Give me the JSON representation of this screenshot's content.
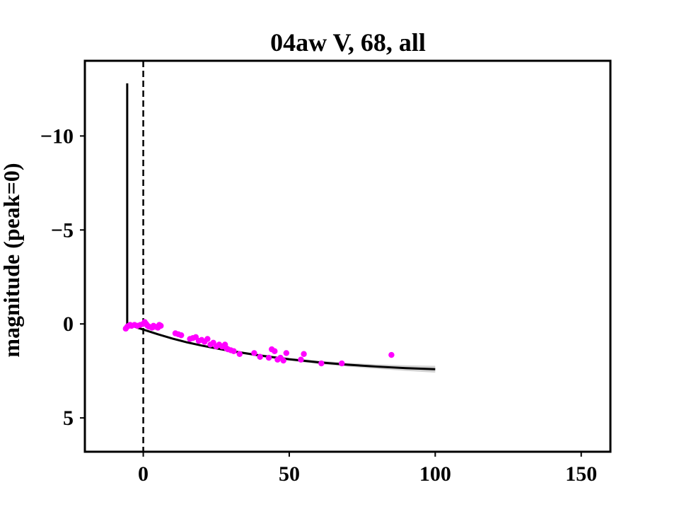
{
  "chart_data": {
    "type": "scatter",
    "title": "04aw V, 68, all",
    "xlabel": "",
    "ylabel": "magnitude (peak=0)",
    "xlim": [
      -20,
      160
    ],
    "ylim": [
      6.8,
      -14
    ],
    "y_inverted": true,
    "grid": false,
    "legend": "none",
    "xticks": [
      0,
      50,
      100,
      150
    ],
    "xtick_labels": [
      "0",
      "50",
      "100",
      "150"
    ],
    "yticks": [
      -10,
      -5,
      0,
      5
    ],
    "ytick_labels": [
      "−10",
      "−5",
      "0",
      "5"
    ],
    "vline_x": 0,
    "colors": {
      "points": "#ff00ff",
      "fit": "#000000",
      "band": "#c8c8c8",
      "vline": "#000000"
    },
    "points": [
      {
        "x": -6,
        "y": 0.25
      },
      {
        "x": -5.5,
        "y": 0.15
      },
      {
        "x": -5,
        "y": 0.1
      },
      {
        "x": -4.5,
        "y": 0.05
      },
      {
        "x": -4,
        "y": 0.1
      },
      {
        "x": -3,
        "y": 0.05
      },
      {
        "x": -2,
        "y": 0.1
      },
      {
        "x": -1,
        "y": 0.05
      },
      {
        "x": 0,
        "y": 0.0
      },
      {
        "x": 0.5,
        "y": -0.1
      },
      {
        "x": 1,
        "y": 0.0
      },
      {
        "x": 1.5,
        "y": 0.1
      },
      {
        "x": 2,
        "y": 0.15
      },
      {
        "x": 3,
        "y": 0.2
      },
      {
        "x": 3.5,
        "y": 0.1
      },
      {
        "x": 4,
        "y": 0.15
      },
      {
        "x": 5,
        "y": 0.2
      },
      {
        "x": 5.5,
        "y": 0.05
      },
      {
        "x": 6,
        "y": 0.1
      },
      {
        "x": 11,
        "y": 0.5
      },
      {
        "x": 12,
        "y": 0.55
      },
      {
        "x": 13,
        "y": 0.6
      },
      {
        "x": 16,
        "y": 0.8
      },
      {
        "x": 17,
        "y": 0.75
      },
      {
        "x": 18,
        "y": 0.7
      },
      {
        "x": 19,
        "y": 0.9
      },
      {
        "x": 20,
        "y": 0.85
      },
      {
        "x": 21,
        "y": 0.95
      },
      {
        "x": 22,
        "y": 0.8
      },
      {
        "x": 23,
        "y": 1.1
      },
      {
        "x": 24,
        "y": 1.0
      },
      {
        "x": 25,
        "y": 1.2
      },
      {
        "x": 26,
        "y": 1.1
      },
      {
        "x": 27,
        "y": 1.2
      },
      {
        "x": 28,
        "y": 1.1
      },
      {
        "x": 28.5,
        "y": 1.3
      },
      {
        "x": 29,
        "y": 1.35
      },
      {
        "x": 30,
        "y": 1.4
      },
      {
        "x": 31,
        "y": 1.45
      },
      {
        "x": 33,
        "y": 1.6
      },
      {
        "x": 38,
        "y": 1.55
      },
      {
        "x": 40,
        "y": 1.75
      },
      {
        "x": 43,
        "y": 1.8
      },
      {
        "x": 44,
        "y": 1.35
      },
      {
        "x": 45,
        "y": 1.45
      },
      {
        "x": 46,
        "y": 1.9
      },
      {
        "x": 47,
        "y": 1.8
      },
      {
        "x": 48,
        "y": 1.95
      },
      {
        "x": 49,
        "y": 1.55
      },
      {
        "x": 54,
        "y": 1.9
      },
      {
        "x": 55,
        "y": 1.6
      },
      {
        "x": 61,
        "y": 2.1
      },
      {
        "x": 68,
        "y": 2.1
      },
      {
        "x": 85,
        "y": 1.65
      }
    ],
    "fit_curve": {
      "x": [
        -5.5,
        -5.5,
        -5,
        -4,
        -2,
        0,
        5,
        10,
        15,
        20,
        25,
        30,
        40,
        50,
        60,
        70,
        80,
        90,
        100
      ],
      "y": [
        -12.8,
        0.0,
        0.02,
        0.08,
        0.2,
        0.3,
        0.55,
        0.78,
        0.98,
        1.15,
        1.3,
        1.44,
        1.68,
        1.88,
        2.04,
        2.17,
        2.27,
        2.35,
        2.41
      ]
    },
    "fit_band_halfwidth": [
      0,
      0,
      0,
      0,
      0,
      0,
      0.02,
      0.03,
      0.04,
      0.05,
      0.05,
      0.06,
      0.07,
      0.08,
      0.09,
      0.1,
      0.12,
      0.15,
      0.18
    ]
  }
}
